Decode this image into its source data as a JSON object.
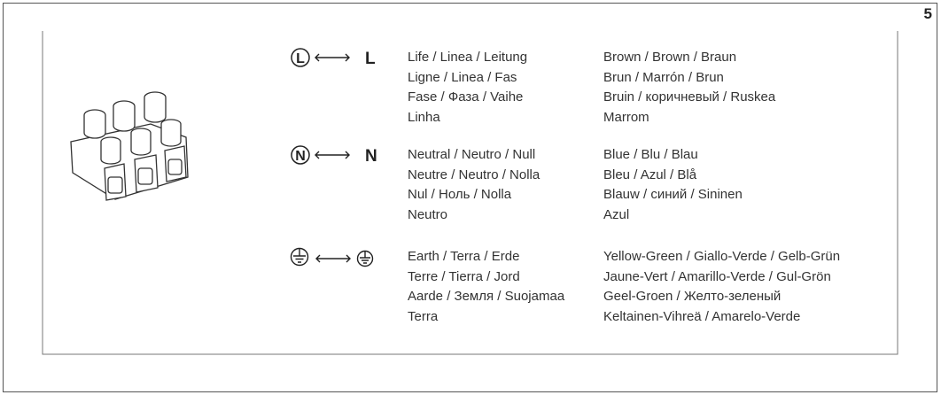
{
  "page_number": "5",
  "rows": [
    {
      "symbol": "L",
      "label": "L",
      "names": [
        "Life / Linea / Leitung",
        "Ligne / Linea / Fas",
        "Fase / Фаза / Vaihe",
        "Linha"
      ],
      "colors": [
        "Brown / Brown / Braun",
        "Brun / Marrón / Brun",
        "Bruin / коричневый / Ruskea",
        "Marrom"
      ]
    },
    {
      "symbol": "N",
      "label": "N",
      "names": [
        "Neutral / Neutro / Null",
        "Neutre / Neutro / Nolla",
        "Nul / Ноль / Nolla",
        "Neutro"
      ],
      "colors": [
        "Blue / Blu / Blau",
        "Bleu / Azul / Blå",
        "Blauw / синий / Sininen",
        "Azul"
      ]
    },
    {
      "names": [
        "Earth / Terra / Erde",
        "Terre / Tierra / Jord",
        "Aarde / Земля / Suojamaa",
        "Terra"
      ],
      "colors": [
        "Yellow-Green / Giallo-Verde / Gelb-Grün",
        "Jaune-Vert / Amarillo-Verde / Gul-Grön",
        "Geel-Groen / Желто-зеленый",
        "Keltainen-Vihreä / Amarelo-Verde"
      ]
    }
  ]
}
